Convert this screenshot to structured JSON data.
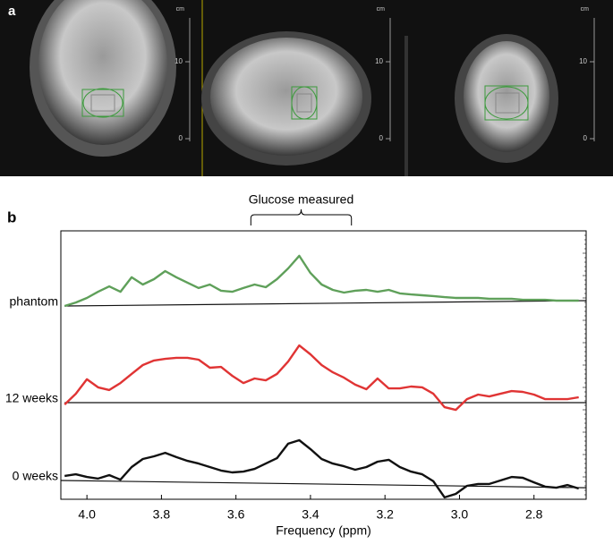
{
  "panel_a": {
    "label": "a",
    "scales": [
      {
        "unit": "cm",
        "ticks": [
          10,
          0
        ]
      },
      {
        "unit": "cm",
        "ticks": [
          10,
          0
        ]
      },
      {
        "unit": "cm",
        "ticks": [
          10,
          0
        ]
      }
    ]
  },
  "chart_data": {
    "type": "line",
    "panel_label": "b",
    "x_label": "Frequency (ppm)",
    "annotation": {
      "text": "Glucose measured",
      "x": [
        3.56,
        3.29
      ]
    },
    "xlim": [
      4.07,
      2.66
    ],
    "ylim": [
      0,
      100
    ],
    "xticks": [
      {
        "value": 4,
        "label": "4.0"
      },
      3.8,
      3.6,
      3.4,
      3.2,
      {
        "value": 3,
        "label": "3.0"
      },
      2.8
    ],
    "x": [
      4.06,
      4.03,
      4.0,
      3.97,
      3.94,
      3.91,
      3.88,
      3.85,
      3.82,
      3.79,
      3.76,
      3.73,
      3.7,
      3.67,
      3.64,
      3.61,
      3.58,
      3.55,
      3.52,
      3.49,
      3.46,
      3.43,
      3.4,
      3.37,
      3.34,
      3.31,
      3.28,
      3.25,
      3.22,
      3.19,
      3.16,
      3.13,
      3.1,
      3.07,
      3.04,
      3.01,
      2.98,
      2.95,
      2.92,
      2.89,
      2.86,
      2.83,
      2.8,
      2.77,
      2.74,
      2.71,
      2.68
    ],
    "series": [
      {
        "name": "phantom",
        "color": "#5fa05a",
        "values": [
          72,
          73.3,
          75,
          77.3,
          79.3,
          77.3,
          82.7,
          80,
          82,
          85,
          82.7,
          80.7,
          78.7,
          80,
          77.7,
          77.3,
          78.7,
          80,
          79,
          82,
          86,
          90.7,
          84.3,
          80,
          78,
          77,
          77.7,
          78,
          77.3,
          78,
          76.7,
          76.3,
          76,
          75.7,
          75.3,
          75,
          75,
          75,
          74.7,
          74.7,
          74.7,
          74.3,
          74.3,
          74.3,
          74,
          74,
          74
        ]
      },
      {
        "name": "12 weeks",
        "color": "#e03434",
        "values": [
          35.3,
          39.3,
          44.7,
          41.7,
          40.7,
          43.3,
          46.7,
          50,
          51.7,
          52.3,
          52.7,
          52.7,
          52,
          49,
          49.3,
          46,
          43.3,
          45,
          44.3,
          46.7,
          51.3,
          57.3,
          54,
          50,
          47.3,
          45.3,
          42.7,
          41,
          45,
          41.3,
          41.3,
          42,
          41.7,
          39.3,
          34.3,
          33.3,
          37.3,
          39,
          38.3,
          39.3,
          40.3,
          40,
          39,
          37.3,
          37.3,
          37.3,
          38
        ]
      },
      {
        "name": "0 weeks",
        "color": "#111111",
        "values": [
          8.7,
          9.3,
          8.3,
          7.7,
          9,
          7.3,
          12,
          15,
          16,
          17.3,
          15.7,
          14.3,
          13.3,
          12,
          10.7,
          10,
          10.3,
          11.3,
          13.3,
          15.3,
          20.7,
          22,
          18.7,
          15,
          13.3,
          12.3,
          11,
          12,
          14,
          14.7,
          12,
          10.3,
          9.3,
          6.7,
          0.7,
          2,
          5,
          5.7,
          5.7,
          7,
          8.3,
          8,
          6.3,
          4.7,
          4.3,
          5.3,
          4
        ]
      }
    ],
    "baselines": [
      {
        "color": "#111111",
        "x": [
          4.06,
          2.66
        ],
        "values": [
          72,
          74
        ]
      },
      {
        "color": "#111111",
        "x": [
          4.06,
          2.66
        ],
        "values": [
          36,
          36
        ]
      },
      {
        "color": "#111111",
        "x": [
          4.07,
          2.66
        ],
        "values": [
          7,
          4.3
        ]
      }
    ]
  }
}
